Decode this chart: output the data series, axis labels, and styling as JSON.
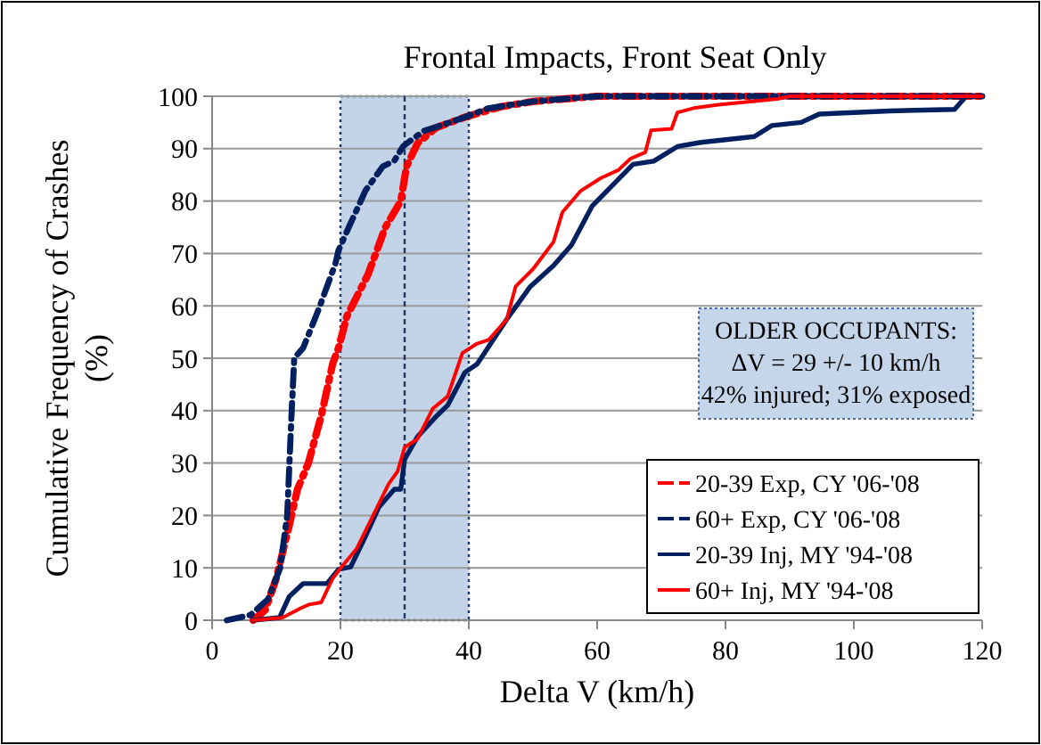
{
  "chart_data": {
    "type": "line",
    "title": "Frontal Impacts, Front Seat Only",
    "xlabel": "Delta V (km/h)",
    "ylabel": "Cumulative Frequency of Crashes (%)",
    "xlim": [
      0,
      120
    ],
    "xticks": [
      0,
      20,
      40,
      60,
      80,
      100,
      120
    ],
    "ylim": [
      0,
      100
    ],
    "yticks": [
      0,
      10,
      20,
      30,
      40,
      50,
      60,
      70,
      80,
      90,
      100
    ],
    "grid": "y",
    "legend": "bottom right",
    "series": [
      {
        "name": "20-39 Exp, CY '06-'08",
        "color": "#ff0000",
        "line_style": "dashed",
        "x": [
          6.4,
          8.3,
          10,
          12,
          13.3,
          15,
          17,
          18.8,
          19.7,
          21,
          24.3,
          27,
          29.4,
          30.3,
          32,
          34.9,
          39.4,
          45,
          50,
          60,
          120
        ],
        "values": [
          0,
          2,
          8,
          18,
          25,
          30,
          39,
          49,
          52,
          58,
          66,
          75,
          80,
          86.6,
          91,
          94,
          96,
          98,
          99,
          100,
          100
        ]
      },
      {
        "name": "60+ Exp, CY '06-'08",
        "color": "#002060",
        "line_style": "dashed",
        "x": [
          2.3,
          6,
          8.7,
          10.6,
          11.7,
          12.4,
          12.8,
          14.2,
          16.5,
          19.2,
          19.7,
          21.3,
          23.9,
          26.6,
          28.4,
          29.8,
          33,
          35.8,
          39.4,
          43,
          50,
          60,
          120
        ],
        "values": [
          0,
          1,
          4,
          10,
          20,
          40,
          50,
          52,
          59,
          68,
          70.6,
          75,
          82,
          86.6,
          87.7,
          90.5,
          93.4,
          94.5,
          96,
          97.7,
          99,
          100,
          100
        ]
      },
      {
        "name": "20-39 Inj, MY '94-'08",
        "color": "#002060",
        "line_style": "solid",
        "x": [
          6.4,
          10.5,
          12,
          14.2,
          17.9,
          19.7,
          21.6,
          23.9,
          26,
          28.4,
          29.4,
          30,
          32,
          35,
          36.7,
          39.4,
          41.3,
          45.9,
          49.6,
          53.2,
          56,
          59.2,
          62.4,
          65.6,
          68.8,
          72.5,
          76.2,
          84.5,
          87.2,
          91.8,
          94.6,
          105.6,
          115.7,
          117.5,
          120
        ],
        "values": [
          0,
          0.5,
          4.5,
          7,
          7,
          9.7,
          10.2,
          16,
          21.6,
          25,
          25,
          30.7,
          35,
          39,
          41,
          47.3,
          48.9,
          57.4,
          63.7,
          67.7,
          71.6,
          79,
          83,
          87,
          87.6,
          90.4,
          91.2,
          92.3,
          94.4,
          95,
          96.6,
          97.2,
          97.5,
          100,
          100
        ]
      },
      {
        "name": "60+ Inj, MY '94-'08",
        "color": "#ff0000",
        "line_style": "solid",
        "x": [
          6.4,
          11,
          13.8,
          15.1,
          17,
          18.8,
          20.2,
          22.5,
          24.8,
          27.5,
          28.9,
          30,
          32,
          34.4,
          36.7,
          39,
          41.3,
          43.1,
          45.9,
          47.3,
          50,
          53.2,
          54.6,
          57.4,
          60.6,
          63.3,
          65.2,
          67.5,
          68.4,
          71.6,
          72.5,
          75.3,
          78.9,
          88.1,
          90,
          120
        ],
        "values": [
          0,
          0.5,
          2.3,
          3,
          3.4,
          8,
          10.2,
          13.6,
          19.3,
          26,
          28.4,
          33,
          34.6,
          40.4,
          42.7,
          51,
          52.8,
          53.5,
          57.4,
          63.7,
          67,
          72.2,
          77.9,
          81.9,
          84.4,
          85.9,
          88.1,
          89.3,
          93.5,
          93.8,
          96.9,
          97.8,
          98.4,
          99.5,
          100,
          100
        ]
      }
    ],
    "bands": [
      {
        "axis": "x",
        "from": 20,
        "to": 40,
        "color": "#b8cce4"
      }
    ],
    "ref_lines": [
      {
        "axis": "x",
        "value": 30,
        "color": "#1f3864",
        "line_style": "dashed"
      }
    ],
    "annotations": [
      "OLDER OCCUPANTS:",
      "ΔV = 29 +/- 10 km/h",
      "42% injured; 31% exposed"
    ]
  }
}
